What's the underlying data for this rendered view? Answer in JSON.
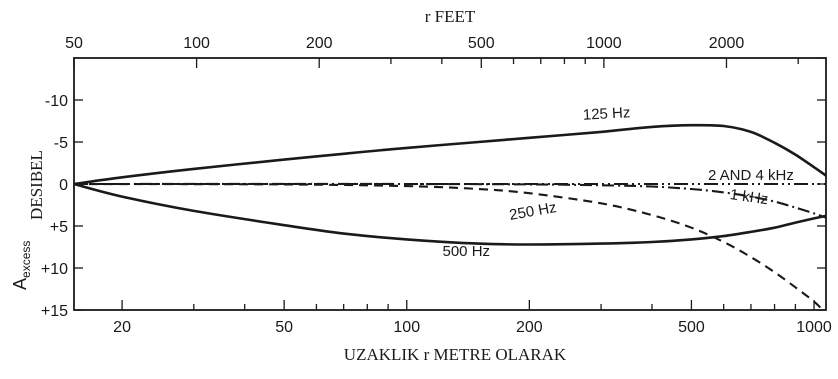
{
  "chart_data": {
    "type": "line",
    "title": "",
    "top_axis": {
      "label": "r FEET",
      "scale": "log",
      "ticks": [
        50,
        100,
        200,
        500,
        1000,
        2000
      ]
    },
    "bottom_axis": {
      "label": "UZAKLIK r METRE OLARAK",
      "scale": "log",
      "lim": [
        15.24,
        1070
      ],
      "ticks": [
        20,
        50,
        100,
        200,
        500,
        1000
      ]
    },
    "y_axis": {
      "label_main": "A",
      "label_sub": "excess",
      "label_right": "DESIBEL",
      "inverted": true,
      "lim": [
        -15,
        15
      ],
      "ticks": [
        "-10",
        "-5",
        "0",
        "+5",
        "+10",
        "+15"
      ],
      "tick_values": [
        -10,
        -5,
        0,
        5,
        10,
        15
      ]
    },
    "series": [
      {
        "name": "125 Hz",
        "style": "solid",
        "x": [
          15.24,
          20,
          30,
          50,
          70,
          100,
          150,
          200,
          300,
          400,
          500,
          600,
          700,
          800,
          900,
          1000,
          1070
        ],
        "y": [
          0,
          -0.8,
          -1.8,
          -2.9,
          -3.6,
          -4.3,
          -5.0,
          -5.5,
          -6.2,
          -6.8,
          -7.0,
          -6.9,
          -6.2,
          -4.9,
          -3.5,
          -2.0,
          -1.0
        ]
      },
      {
        "name": "2 AND 4 kHz",
        "style": "dashdotdot",
        "x": [
          15.24,
          1070
        ],
        "y": [
          0,
          0
        ]
      },
      {
        "name": "1 kHz",
        "style": "dashdot",
        "x": [
          15.24,
          100,
          200,
          300,
          400,
          500,
          600,
          700,
          800,
          900,
          1000,
          1070
        ],
        "y": [
          0,
          0,
          0.05,
          0.15,
          0.3,
          0.6,
          1.0,
          1.5,
          2.1,
          2.8,
          3.5,
          4.0
        ]
      },
      {
        "name": "250 Hz",
        "style": "dashed",
        "x": [
          15.24,
          50,
          100,
          150,
          200,
          300,
          400,
          500,
          600,
          700,
          800,
          900,
          1000,
          1050
        ],
        "y": [
          0,
          0.05,
          0.25,
          0.6,
          1.1,
          2.3,
          3.7,
          5.2,
          6.9,
          8.7,
          10.5,
          12.3,
          14.0,
          15.0
        ]
      },
      {
        "name": "500 Hz",
        "style": "solid",
        "x": [
          15.24,
          20,
          30,
          50,
          70,
          100,
          150,
          200,
          300,
          400,
          500,
          600,
          700,
          800,
          900,
          1000,
          1070
        ],
        "y": [
          0,
          1.5,
          3.2,
          4.9,
          5.9,
          6.6,
          7.1,
          7.2,
          7.1,
          6.9,
          6.6,
          6.2,
          5.7,
          5.2,
          4.6,
          4.1,
          3.8
        ]
      }
    ],
    "annotations": [
      {
        "text": "125 Hz",
        "x": 310,
        "y": -7.8,
        "rotate": -3
      },
      {
        "text": "2 AND 4 kHz",
        "x": 700,
        "y": -0.5,
        "rotate": 0
      },
      {
        "text": "1 kHz",
        "x": 690,
        "y": 2.1,
        "rotate": 8
      },
      {
        "text": "250 Hz",
        "x": 205,
        "y": 3.8,
        "rotate": -10
      },
      {
        "text": "500 Hz",
        "x": 140,
        "y": 8.6,
        "rotate": 0
      }
    ],
    "grid": false,
    "legend": "none"
  }
}
